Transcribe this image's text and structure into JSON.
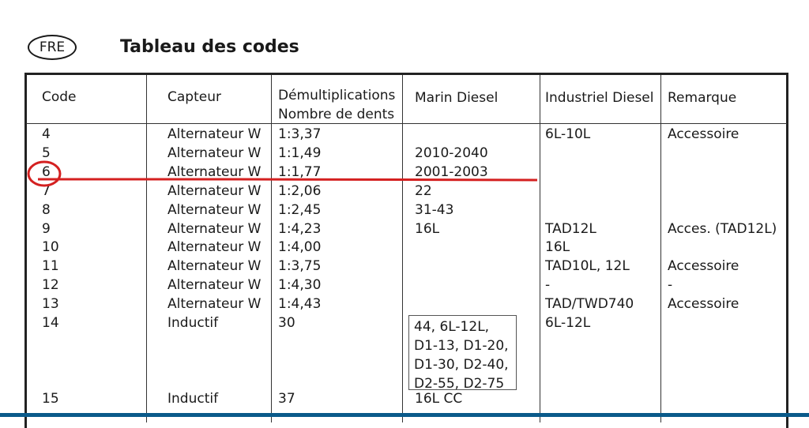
{
  "header": {
    "language_badge": "FRE",
    "title": "Tableau des codes"
  },
  "table": {
    "columns": [
      "Code",
      "Capteur",
      "Démultiplications",
      "Nombre de dents",
      "Marin Diesel",
      "Industriel Diesel",
      "Remarque"
    ],
    "rows": [
      {
        "code": "4",
        "capteur": "Alternateur W",
        "demult": "1:3,37",
        "marin": "",
        "industriel": "6L-10L",
        "remarque": "Accessoire"
      },
      {
        "code": "5",
        "capteur": "Alternateur W",
        "demult": "1:1,49",
        "marin": "2010-2040",
        "industriel": "",
        "remarque": ""
      },
      {
        "code": "6",
        "capteur": "Alternateur W",
        "demult": "1:1,77",
        "marin": "2001-2003",
        "industriel": "",
        "remarque": ""
      },
      {
        "code": "7",
        "capteur": "Alternateur W",
        "demult": "1:2,06",
        "marin": "22",
        "industriel": "",
        "remarque": ""
      },
      {
        "code": "8",
        "capteur": "Alternateur W",
        "demult": "1:2,45",
        "marin": "31-43",
        "industriel": "",
        "remarque": ""
      },
      {
        "code": "9",
        "capteur": "Alternateur W",
        "demult": "1:4,23",
        "marin": "16L",
        "industriel": "TAD12L",
        "remarque": "Acces. (TAD12L)"
      },
      {
        "code": "10",
        "capteur": "Alternateur W",
        "demult": "1:4,00",
        "marin": "",
        "industriel": "16L",
        "remarque": ""
      },
      {
        "code": "11",
        "capteur": "Alternateur W",
        "demult": "1:3,75",
        "marin": "",
        "industriel": "TAD10L, 12L",
        "remarque": "Accessoire"
      },
      {
        "code": "12",
        "capteur": "Alternateur W",
        "demult": "1:4,30",
        "marin": "",
        "industriel": "-",
        "remarque": "-"
      },
      {
        "code": "13",
        "capteur": "Alternateur W",
        "demult": "1:4,43",
        "marin": "",
        "industriel": "TAD/TWD740",
        "remarque": "Accessoire"
      },
      {
        "code": "14",
        "capteur": "Inductif",
        "demult": "30",
        "marin": "",
        "industriel": "6L-12L",
        "remarque": ""
      },
      {
        "code": "15",
        "capteur": "Inductif",
        "demult": "37",
        "marin": "16L CC",
        "industriel": "",
        "remarque": ""
      }
    ],
    "row14_marin_lines": [
      "44, 6L-12L,",
      "D1-13, D1-20,",
      "D1-30, D2-40,",
      "D2-55, D2-75"
    ]
  },
  "annotation": {
    "color": "#d42020"
  }
}
